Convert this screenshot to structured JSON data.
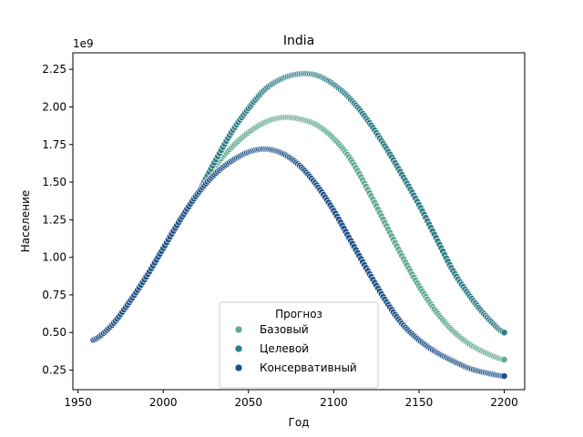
{
  "chart_data": {
    "type": "scatter",
    "title": "India",
    "xlabel": "Год",
    "ylabel": "Население",
    "y_offset_text": "1e9",
    "xlim": [
      1947,
      2212
    ],
    "ylim": [
      0.12,
      2.36
    ],
    "xticks": [
      1950,
      2000,
      2050,
      2100,
      2150,
      2200
    ],
    "yticks": [
      0.25,
      0.5,
      0.75,
      1.0,
      1.25,
      1.5,
      1.75,
      2.0,
      2.25
    ],
    "ytick_labels": [
      "0.25",
      "0.50",
      "0.75",
      "1.00",
      "1.25",
      "1.50",
      "1.75",
      "2.00",
      "2.25"
    ],
    "grid": false,
    "legend": {
      "title": "Прогноз",
      "position": "lower-center"
    },
    "series": [
      {
        "name": "Базовый",
        "color": "#5fa991",
        "x": [
          1959,
          1970,
          1980,
          1990,
          2000,
          2010,
          2020,
          2030,
          2040,
          2050,
          2060,
          2070,
          2080,
          2090,
          2100,
          2110,
          2120,
          2130,
          2140,
          2150,
          2160,
          2170,
          2180,
          2190,
          2200
        ],
        "values": [
          0.45,
          0.55,
          0.7,
          0.87,
          1.06,
          1.25,
          1.42,
          1.6,
          1.73,
          1.83,
          1.9,
          1.93,
          1.92,
          1.88,
          1.79,
          1.65,
          1.45,
          1.23,
          1.01,
          0.81,
          0.64,
          0.51,
          0.42,
          0.36,
          0.32
        ]
      },
      {
        "name": "Целевой",
        "color": "#2f7d86",
        "x": [
          1959,
          1970,
          1980,
          1990,
          2000,
          2010,
          2020,
          2030,
          2040,
          2050,
          2060,
          2070,
          2080,
          2090,
          2100,
          2110,
          2120,
          2130,
          2140,
          2150,
          2160,
          2170,
          2180,
          2190,
          2200
        ],
        "values": [
          0.45,
          0.55,
          0.7,
          0.87,
          1.06,
          1.25,
          1.42,
          1.63,
          1.83,
          1.99,
          2.12,
          2.19,
          2.22,
          2.21,
          2.15,
          2.05,
          1.91,
          1.74,
          1.55,
          1.35,
          1.13,
          0.91,
          0.74,
          0.6,
          0.5
        ]
      },
      {
        "name": "Консервативный",
        "color": "#1d4f86",
        "x": [
          1959,
          1970,
          1980,
          1990,
          2000,
          2010,
          2020,
          2030,
          2040,
          2050,
          2060,
          2070,
          2080,
          2090,
          2100,
          2110,
          2120,
          2130,
          2140,
          2150,
          2160,
          2170,
          2180,
          2190,
          2200
        ],
        "values": [
          0.45,
          0.55,
          0.7,
          0.87,
          1.06,
          1.25,
          1.42,
          1.55,
          1.64,
          1.7,
          1.72,
          1.69,
          1.61,
          1.48,
          1.31,
          1.11,
          0.91,
          0.72,
          0.56,
          0.45,
          0.37,
          0.31,
          0.26,
          0.23,
          0.21
        ]
      }
    ]
  }
}
